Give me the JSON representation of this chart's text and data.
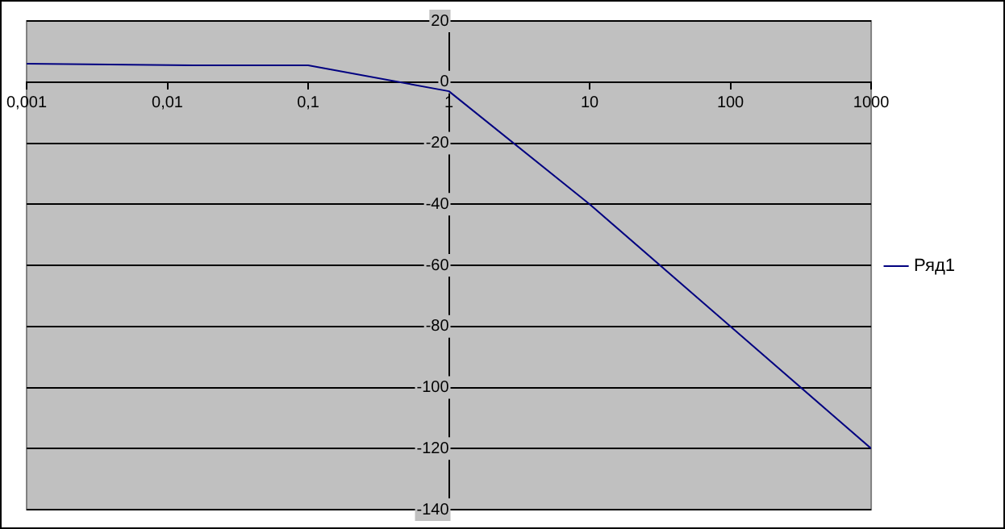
{
  "chart_data": {
    "type": "line",
    "x": [
      0.001,
      0.015,
      0.1,
      1,
      10,
      100,
      1000
    ],
    "series": [
      {
        "name": "Ряд1",
        "color": "#000080",
        "values": [
          6,
          5.5,
          5.5,
          -3,
          -40,
          -80,
          -120
        ]
      }
    ],
    "log": "x",
    "xlim": [
      0.001,
      1000
    ],
    "xticks": [
      {
        "value": 0.001,
        "label": "0,001"
      },
      {
        "value": 0.01,
        "label": "0,01"
      },
      {
        "value": 0.1,
        "label": "0,1"
      },
      1,
      10,
      100,
      1000
    ],
    "ylim": [
      -140,
      20
    ],
    "yticks": [
      -140,
      -120,
      -100,
      -80,
      -60,
      -40,
      -20,
      0,
      20
    ],
    "grid": "y",
    "legend": "right",
    "marker": "none",
    "line_style": "solid"
  }
}
